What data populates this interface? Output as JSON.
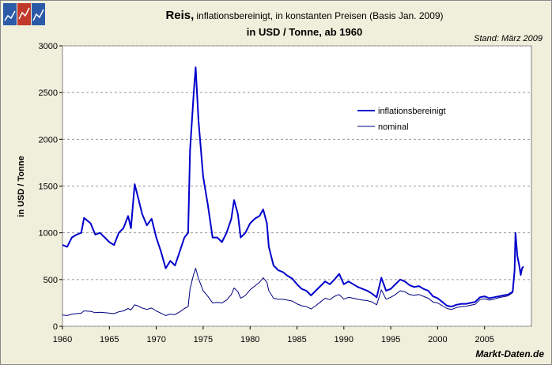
{
  "chart_data": {
    "type": "line",
    "title": "Reis,",
    "subtitle": "inflationsbereinigt, in konstanten Preisen (Basis Jan. 2009)",
    "subtitle2": "in USD / Tonne, ab 1960",
    "note": "Stand: März 2009",
    "source": "Markt-Daten.de",
    "ylabel": "in USD / Tonne",
    "x": [
      1960,
      1960.5,
      1961,
      1961.5,
      1962,
      1962.3,
      1963,
      1963.5,
      1964,
      1964.5,
      1965,
      1965.5,
      1966,
      1966.5,
      1967,
      1967.3,
      1967.7,
      1968,
      1968.5,
      1969,
      1969.5,
      1970,
      1970.5,
      1971,
      1971.5,
      1972,
      1972.5,
      1973,
      1973.4,
      1973.6,
      1974,
      1974.2,
      1974.5,
      1975,
      1975.5,
      1976,
      1976.5,
      1977,
      1977.5,
      1978,
      1978.3,
      1978.7,
      1979,
      1979.5,
      1980,
      1980.5,
      1981,
      1981.4,
      1981.8,
      1982,
      1982.5,
      1983,
      1983.5,
      1984,
      1984.5,
      1985,
      1985.5,
      1986,
      1986.5,
      1987,
      1987.5,
      1988,
      1988.5,
      1989,
      1989.5,
      1990,
      1990.5,
      1991,
      1991.5,
      1992,
      1992.5,
      1993,
      1993.5,
      1994,
      1994.5,
      1995,
      1995.5,
      1996,
      1996.5,
      1997,
      1997.5,
      1998,
      1998.5,
      1999,
      1999.5,
      2000,
      2000.5,
      2001,
      2001.5,
      2002,
      2002.5,
      2003,
      2003.5,
      2004,
      2004.5,
      2005,
      2005.5,
      2006,
      2006.5,
      2007,
      2007.5,
      2008,
      2008.2,
      2008.3,
      2008.5,
      2008.7,
      2008.85,
      2009,
      2009.15
    ],
    "series": [
      {
        "name": "inflationsbereinigt",
        "color": "#0000cc",
        "width": 2,
        "values": [
          870,
          850,
          950,
          980,
          1000,
          1160,
          1100,
          980,
          1000,
          950,
          900,
          870,
          1000,
          1050,
          1180,
          1050,
          1520,
          1400,
          1200,
          1080,
          1150,
          950,
          800,
          620,
          700,
          650,
          800,
          950,
          1000,
          1880,
          2500,
          2770,
          2200,
          1600,
          1300,
          950,
          950,
          900,
          1000,
          1150,
          1350,
          1200,
          950,
          1000,
          1100,
          1150,
          1180,
          1250,
          1100,
          850,
          650,
          600,
          580,
          540,
          510,
          450,
          400,
          380,
          330,
          380,
          430,
          480,
          450,
          500,
          560,
          450,
          480,
          450,
          420,
          400,
          380,
          350,
          310,
          520,
          380,
          400,
          450,
          500,
          480,
          440,
          420,
          430,
          400,
          380,
          320,
          300,
          260,
          220,
          210,
          230,
          240,
          240,
          250,
          260,
          310,
          320,
          300,
          310,
          320,
          330,
          340,
          370,
          600,
          1000,
          750,
          650,
          550,
          620,
          640
        ]
      },
      {
        "name": "nominal",
        "color": "#000080",
        "width": 1,
        "values": [
          120,
          115,
          130,
          135,
          140,
          165,
          160,
          145,
          150,
          145,
          140,
          135,
          155,
          165,
          190,
          175,
          230,
          220,
          195,
          180,
          195,
          165,
          140,
          115,
          130,
          125,
          155,
          190,
          210,
          400,
          560,
          620,
          510,
          380,
          320,
          250,
          255,
          250,
          280,
          340,
          410,
          370,
          300,
          330,
          390,
          430,
          470,
          520,
          470,
          380,
          300,
          290,
          290,
          280,
          270,
          240,
          220,
          210,
          185,
          220,
          260,
          300,
          285,
          320,
          340,
          290,
          310,
          300,
          290,
          280,
          275,
          260,
          230,
          390,
          290,
          310,
          340,
          380,
          370,
          340,
          330,
          340,
          320,
          300,
          260,
          250,
          220,
          190,
          180,
          200,
          210,
          215,
          225,
          235,
          285,
          295,
          280,
          290,
          305,
          315,
          325,
          360,
          590,
          990,
          740,
          640,
          545,
          615,
          635
        ]
      }
    ],
    "xlim": [
      1960,
      2010
    ],
    "xticks": [
      1960,
      1965,
      1970,
      1975,
      1980,
      1985,
      1990,
      1995,
      2000,
      2005
    ],
    "ylim": [
      0,
      3000
    ],
    "yticks": [
      0,
      500,
      1000,
      1500,
      2000,
      2500,
      3000
    ],
    "grid": true
  }
}
